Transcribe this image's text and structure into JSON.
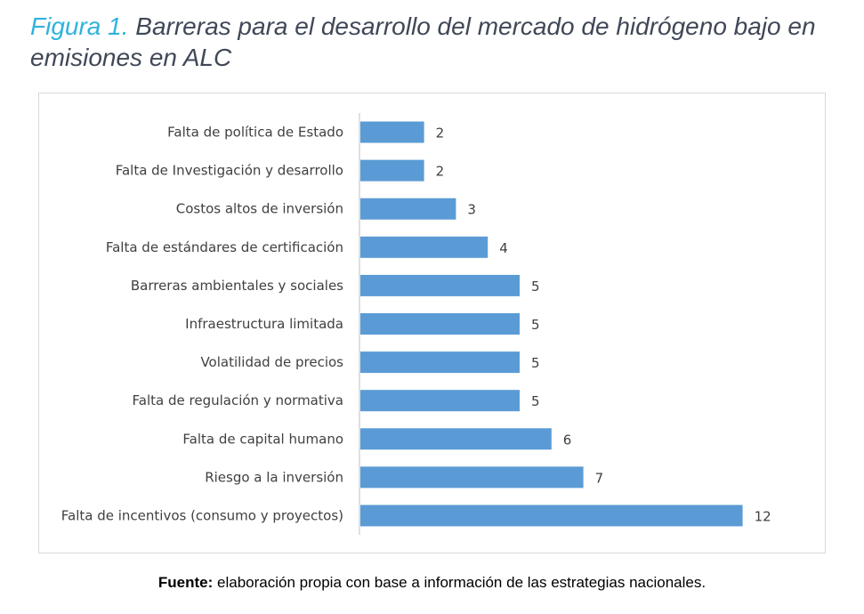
{
  "figure": {
    "label": "Figura 1.",
    "title": "Barreras para el desarrollo del mercado de hidrógeno bajo en emisiones en ALC"
  },
  "source": {
    "prefix": "Fuente:",
    "text": " elaboración propia con base a información de las estrategias nacionales."
  },
  "colors": {
    "bar": "#5b9bd5",
    "axis": "#bfbfbf",
    "text": "#404040",
    "title_label": "#2fb3dc",
    "title_text": "#404857"
  },
  "chart_data": {
    "type": "bar",
    "orientation": "horizontal",
    "title": "",
    "xlabel": "",
    "ylabel": "",
    "categories": [
      "Falta de política de Estado",
      "Falta de Investigación y desarrollo",
      "Costos altos de inversión",
      "Falta de estándares de certificación",
      "Barreras ambientales y sociales",
      "Infraestructura limitada",
      "Volatilidad de precios",
      "Falta de regulación y normativa",
      "Falta de capital humano",
      "Riesgo a la inversión",
      "Falta de incentivos (consumo y proyectos)"
    ],
    "values": [
      2,
      2,
      3,
      4,
      5,
      5,
      5,
      5,
      6,
      7,
      12
    ],
    "xlim": [
      0,
      12
    ],
    "data_labels": true,
    "grid": false,
    "legend": "none"
  }
}
